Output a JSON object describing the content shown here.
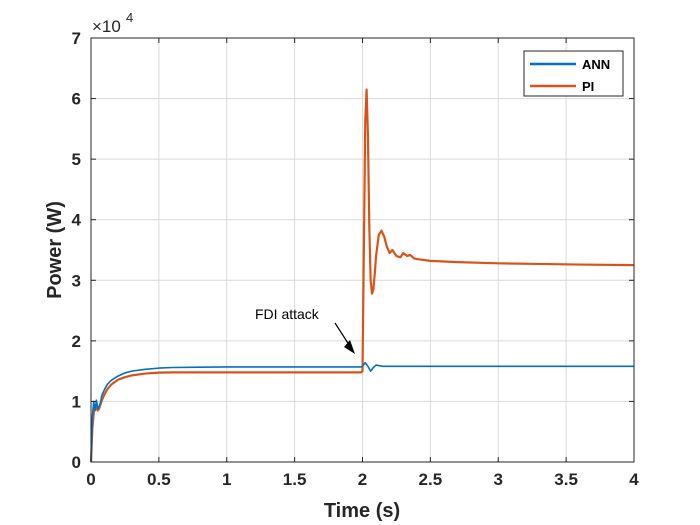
{
  "chart_data": {
    "type": "line",
    "title": "",
    "xlabel": "Time (s)",
    "ylabel": "Power (W)",
    "xlim": [
      0,
      4
    ],
    "ylim": [
      0,
      7
    ],
    "y_scale_label": "×10",
    "y_scale_exponent": "4",
    "x_ticks": [
      "0",
      "0.5",
      "1",
      "1.5",
      "2",
      "2.5",
      "3",
      "3.5",
      "4"
    ],
    "y_ticks": [
      "0",
      "1",
      "2",
      "3",
      "4",
      "5",
      "6",
      "7"
    ],
    "grid": true,
    "legend_position": "top-right",
    "colors": {
      "ANN": "#0072BD",
      "PI": "#D95319",
      "grid": "#d9d9d9",
      "axis": "#262626"
    },
    "series": [
      {
        "name": "ANN",
        "x": [
          0,
          0.01,
          0.02,
          0.03,
          0.04,
          0.05,
          0.06,
          0.07,
          0.08,
          0.1,
          0.12,
          0.15,
          0.2,
          0.25,
          0.3,
          0.4,
          0.5,
          0.6,
          0.8,
          1.0,
          1.5,
          1.99,
          2.0,
          2.02,
          2.04,
          2.06,
          2.08,
          2.1,
          2.15,
          2.2,
          2.5,
          3.0,
          3.5,
          4.0
        ],
        "y": [
          0,
          0.75,
          1.0,
          0.85,
          1.02,
          0.88,
          0.92,
          0.98,
          1.1,
          1.2,
          1.28,
          1.35,
          1.42,
          1.47,
          1.5,
          1.53,
          1.55,
          1.56,
          1.565,
          1.57,
          1.57,
          1.57,
          1.58,
          1.64,
          1.58,
          1.5,
          1.56,
          1.6,
          1.58,
          1.58,
          1.58,
          1.58,
          1.58,
          1.58
        ]
      },
      {
        "name": "PI",
        "x": [
          0,
          0.01,
          0.02,
          0.03,
          0.04,
          0.05,
          0.06,
          0.07,
          0.08,
          0.1,
          0.12,
          0.15,
          0.2,
          0.25,
          0.3,
          0.4,
          0.5,
          0.6,
          0.8,
          1.0,
          1.5,
          1.99,
          2.0,
          2.01,
          2.02,
          2.03,
          2.04,
          2.05,
          2.06,
          2.07,
          2.08,
          2.09,
          2.1,
          2.12,
          2.14,
          2.16,
          2.18,
          2.2,
          2.22,
          2.25,
          2.28,
          2.3,
          2.33,
          2.35,
          2.38,
          2.4,
          2.5,
          2.7,
          3.0,
          3.3,
          3.6,
          4.0
        ],
        "y": [
          0,
          0.55,
          0.8,
          0.92,
          0.88,
          0.85,
          0.88,
          0.95,
          1.02,
          1.12,
          1.2,
          1.28,
          1.36,
          1.4,
          1.43,
          1.46,
          1.475,
          1.48,
          1.48,
          1.48,
          1.48,
          1.48,
          1.5,
          3.5,
          5.6,
          6.15,
          5.4,
          3.9,
          3.0,
          2.78,
          2.85,
          3.1,
          3.4,
          3.75,
          3.82,
          3.72,
          3.55,
          3.45,
          3.5,
          3.4,
          3.38,
          3.45,
          3.4,
          3.42,
          3.36,
          3.35,
          3.32,
          3.3,
          3.28,
          3.27,
          3.26,
          3.25
        ]
      }
    ],
    "annotations": [
      {
        "text": "FDI attack",
        "x_text": 1.52,
        "y_text": 1.95,
        "x_arrow": 2.0,
        "y_arrow": 1.48
      }
    ]
  }
}
